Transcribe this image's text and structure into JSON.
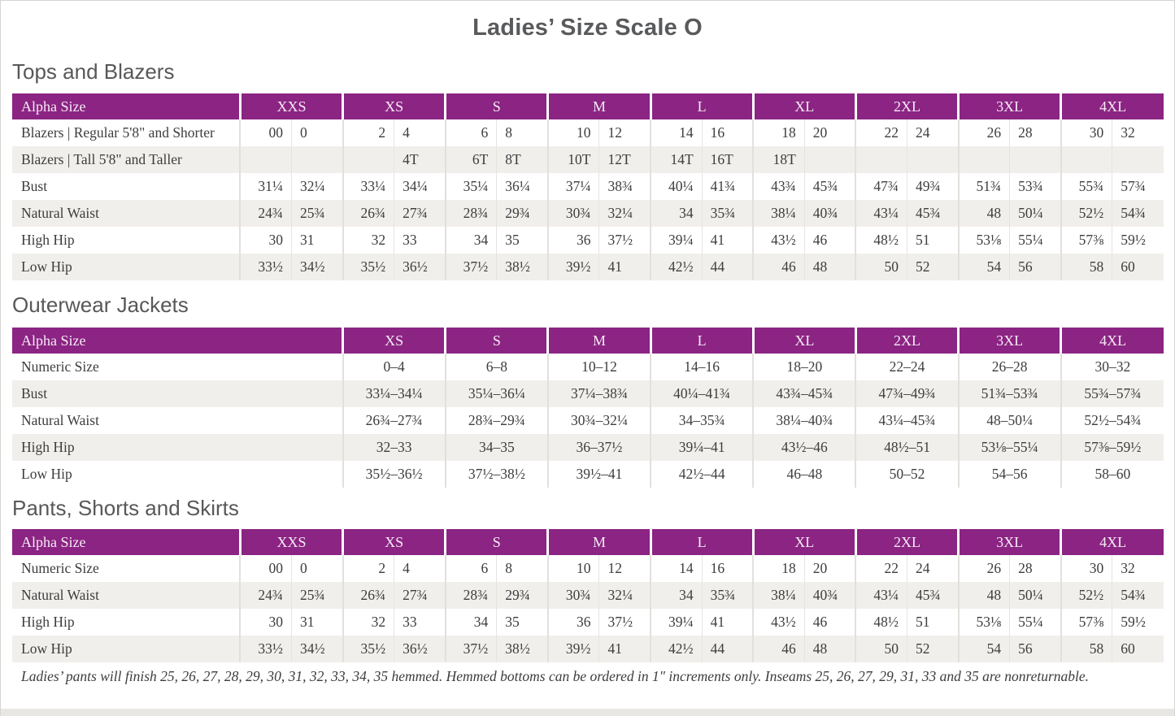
{
  "page": {
    "title": "Ladies’ Size Scale O"
  },
  "colors": {
    "header_bg": "#8B2483",
    "header_text": "#F6EBF4",
    "row_stripe": "#F1EFEC",
    "body_text": "#3D3D3D",
    "heading_text": "#58585A"
  },
  "tables": [
    {
      "heading": "Tops and Blazers",
      "type": "split",
      "header": {
        "label": "Alpha Size",
        "sizes": [
          "XXS",
          "XS",
          "S",
          "M",
          "L",
          "XL",
          "2XL",
          "3XL",
          "4XL"
        ]
      },
      "rows": [
        {
          "label": "Blazers | Regular 5'8\" and Shorter",
          "cells": [
            [
              "00",
              "0"
            ],
            [
              "2",
              "4"
            ],
            [
              "6",
              "8"
            ],
            [
              "10",
              "12"
            ],
            [
              "14",
              "16"
            ],
            [
              "18",
              "20"
            ],
            [
              "22",
              "24"
            ],
            [
              "26",
              "28"
            ],
            [
              "30",
              "32"
            ]
          ]
        },
        {
          "label": "Blazers | Tall 5'8\" and Taller",
          "cells": [
            [
              "",
              ""
            ],
            [
              "",
              "4T"
            ],
            [
              "6T",
              "8T"
            ],
            [
              "10T",
              "12T"
            ],
            [
              "14T",
              "16T"
            ],
            [
              "18T",
              ""
            ],
            [
              "",
              ""
            ],
            [
              "",
              ""
            ],
            [
              "",
              ""
            ]
          ]
        },
        {
          "label": "Bust",
          "cells": [
            [
              "31¼",
              "32¼"
            ],
            [
              "33¼",
              "34¼"
            ],
            [
              "35¼",
              "36¼"
            ],
            [
              "37¼",
              "38¾"
            ],
            [
              "40¼",
              "41¾"
            ],
            [
              "43¾",
              "45¾"
            ],
            [
              "47¾",
              "49¾"
            ],
            [
              "51¾",
              "53¾"
            ],
            [
              "55¾",
              "57¾"
            ]
          ]
        },
        {
          "label": "Natural Waist",
          "cells": [
            [
              "24¾",
              "25¾"
            ],
            [
              "26¾",
              "27¾"
            ],
            [
              "28¾",
              "29¾"
            ],
            [
              "30¾",
              "32¼"
            ],
            [
              "34",
              "35¾"
            ],
            [
              "38¼",
              "40¾"
            ],
            [
              "43¼",
              "45¾"
            ],
            [
              "48",
              "50¼"
            ],
            [
              "52½",
              "54¾"
            ]
          ]
        },
        {
          "label": "High Hip",
          "cells": [
            [
              "30",
              "31"
            ],
            [
              "32",
              "33"
            ],
            [
              "34",
              "35"
            ],
            [
              "36",
              "37½"
            ],
            [
              "39¼",
              "41"
            ],
            [
              "43½",
              "46"
            ],
            [
              "48½",
              "51"
            ],
            [
              "53⅛",
              "55¼"
            ],
            [
              "57⅜",
              "59½"
            ]
          ]
        },
        {
          "label": "Low Hip",
          "cells": [
            [
              "33½",
              "34½"
            ],
            [
              "35½",
              "36½"
            ],
            [
              "37½",
              "38½"
            ],
            [
              "39½",
              "41"
            ],
            [
              "42½",
              "44"
            ],
            [
              "46",
              "48"
            ],
            [
              "50",
              "52"
            ],
            [
              "54",
              "56"
            ],
            [
              "58",
              "60"
            ]
          ]
        }
      ]
    },
    {
      "heading": "Outerwear Jackets",
      "type": "merged",
      "header": {
        "label": "Alpha Size",
        "sizes": [
          "XS",
          "S",
          "M",
          "L",
          "XL",
          "2XL",
          "3XL",
          "4XL"
        ]
      },
      "rows": [
        {
          "label": "Numeric Size",
          "cells": [
            "0–4",
            "6–8",
            "10–12",
            "14–16",
            "18–20",
            "22–24",
            "26–28",
            "30–32"
          ]
        },
        {
          "label": "Bust",
          "cells": [
            "33¼–34¼",
            "35¼–36¼",
            "37¼–38¾",
            "40¼–41¾",
            "43¾–45¾",
            "47¾–49¾",
            "51¾–53¾",
            "55¾–57¾"
          ]
        },
        {
          "label": "Natural Waist",
          "cells": [
            "26¾–27¾",
            "28¾–29¾",
            "30¾–32¼",
            "34–35¾",
            "38¼–40¾",
            "43¼–45¾",
            "48–50¼",
            "52½–54¾"
          ]
        },
        {
          "label": "High Hip",
          "cells": [
            "32–33",
            "34–35",
            "36–37½",
            "39¼–41",
            "43½–46",
            "48½–51",
            "53⅛–55¼",
            "57⅜–59½"
          ]
        },
        {
          "label": "Low Hip",
          "cells": [
            "35½–36½",
            "37½–38½",
            "39½–41",
            "42½–44",
            "46–48",
            "50–52",
            "54–56",
            "58–60"
          ]
        }
      ]
    },
    {
      "heading": "Pants, Shorts and Skirts",
      "type": "split",
      "header": {
        "label": "Alpha Size",
        "sizes": [
          "XXS",
          "XS",
          "S",
          "M",
          "L",
          "XL",
          "2XL",
          "3XL",
          "4XL"
        ]
      },
      "rows": [
        {
          "label": "Numeric Size",
          "cells": [
            [
              "00",
              "0"
            ],
            [
              "2",
              "4"
            ],
            [
              "6",
              "8"
            ],
            [
              "10",
              "12"
            ],
            [
              "14",
              "16"
            ],
            [
              "18",
              "20"
            ],
            [
              "22",
              "24"
            ],
            [
              "26",
              "28"
            ],
            [
              "30",
              "32"
            ]
          ]
        },
        {
          "label": "Natural Waist",
          "cells": [
            [
              "24¾",
              "25¾"
            ],
            [
              "26¾",
              "27¾"
            ],
            [
              "28¾",
              "29¾"
            ],
            [
              "30¾",
              "32¼"
            ],
            [
              "34",
              "35¾"
            ],
            [
              "38¼",
              "40¾"
            ],
            [
              "43¼",
              "45¾"
            ],
            [
              "48",
              "50¼"
            ],
            [
              "52½",
              "54¾"
            ]
          ]
        },
        {
          "label": "High Hip",
          "cells": [
            [
              "30",
              "31"
            ],
            [
              "32",
              "33"
            ],
            [
              "34",
              "35"
            ],
            [
              "36",
              "37½"
            ],
            [
              "39¼",
              "41"
            ],
            [
              "43½",
              "46"
            ],
            [
              "48½",
              "51"
            ],
            [
              "53⅛",
              "55¼"
            ],
            [
              "57⅜",
              "59½"
            ]
          ]
        },
        {
          "label": "Low Hip",
          "cells": [
            [
              "33½",
              "34½"
            ],
            [
              "35½",
              "36½"
            ],
            [
              "37½",
              "38½"
            ],
            [
              "39½",
              "41"
            ],
            [
              "42½",
              "44"
            ],
            [
              "46",
              "48"
            ],
            [
              "50",
              "52"
            ],
            [
              "54",
              "56"
            ],
            [
              "58",
              "60"
            ]
          ]
        }
      ]
    }
  ],
  "footnote": "Ladies’ pants will finish 25, 26, 27, 28, 29, 30, 31, 32, 33, 34, 35 hemmed. Hemmed bottoms can be ordered in 1″ increments only. Inseams 25, 26, 27, 29, 31, 33 and 35 are nonreturnable."
}
